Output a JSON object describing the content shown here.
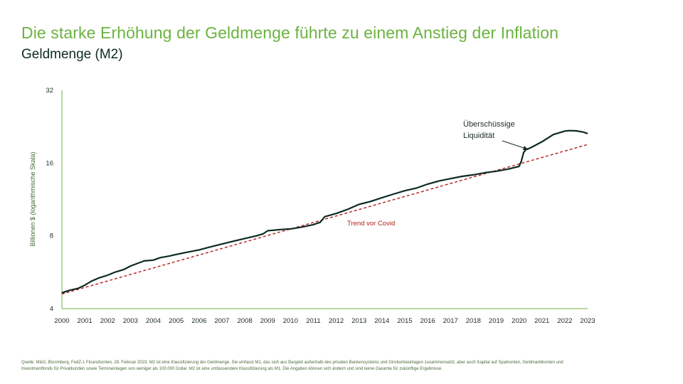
{
  "title": "Die starke Erhöhung der Geldmenge führte zu einem Anstieg der Inflation",
  "subtitle": "Geldmenge (M2)",
  "source": "Quelle: M&G, Bloomberg, FedZ-1 Finanzkonten, 28. Februar 2023. M2 ist eine Klassifizierung der Geldmenge. Sie umfasst M1, das sich aus Bargeld außerhalb des privaten Bankensystems und Girokontoeinlagen zusammensetzt, aber auch Kapital auf Sparkonten, Geldmarktkonten und Investmentfonds für Privatkunden sowie Termineinlagen von weniger als 100.000 Dollar. M2 ist eine umfassendere Klassifizierung als M1. Die Angaben können sich ändern und sind keine Garantie für zukünftige Ergebnisse.",
  "colors": {
    "title": "#6bb33f",
    "series": "#0d2a22",
    "trend": "#b31c1c",
    "axis": "#6bb33f"
  },
  "chart_data": {
    "type": "line",
    "title": "Geldmenge (M2)",
    "ylabel": "Billionen $ (logarithmische Skala)",
    "yscale": "log2",
    "ylim": [
      4,
      32
    ],
    "yticks": [
      4,
      8,
      16,
      32
    ],
    "xlim": [
      2000,
      2023
    ],
    "xticks": [
      2000,
      2001,
      2002,
      2003,
      2004,
      2005,
      2006,
      2007,
      2008,
      2009,
      2010,
      2011,
      2012,
      2013,
      2014,
      2015,
      2016,
      2017,
      2018,
      2019,
      2020,
      2021,
      2022,
      2023
    ],
    "grid": false,
    "series": [
      {
        "x": [
          2000,
          2000.3,
          2000.7,
          2001,
          2001.3,
          2001.6,
          2002,
          2002.3,
          2002.7,
          2003,
          2003.3,
          2003.6,
          2004,
          2004.3,
          2004.7,
          2005,
          2005.5,
          2006,
          2006.5,
          2007,
          2007.5,
          2008,
          2008.5,
          2008.8,
          2009,
          2009.3,
          2009.6,
          2010,
          2010.5,
          2011,
          2011.3,
          2011.5,
          2012,
          2012.5,
          2013,
          2013.5,
          2014,
          2014.5,
          2015,
          2015.5,
          2016,
          2016.5,
          2017,
          2017.5,
          2018,
          2018.5,
          2019,
          2019.5,
          2020,
          2020.1,
          2020.2,
          2020.3,
          2020.5,
          2021,
          2021.5,
          2022,
          2022.2,
          2022.5,
          2022.8,
          2023
        ],
        "values": [
          4.65,
          4.75,
          4.85,
          5.0,
          5.2,
          5.35,
          5.5,
          5.65,
          5.8,
          6.0,
          6.15,
          6.3,
          6.35,
          6.5,
          6.6,
          6.7,
          6.85,
          7.0,
          7.2,
          7.4,
          7.6,
          7.8,
          8.0,
          8.15,
          8.4,
          8.45,
          8.5,
          8.55,
          8.7,
          8.9,
          9.1,
          9.6,
          9.9,
          10.3,
          10.8,
          11.1,
          11.5,
          11.9,
          12.3,
          12.6,
          13.1,
          13.5,
          13.8,
          14.1,
          14.3,
          14.6,
          14.8,
          15.1,
          15.5,
          16.3,
          17.7,
          18.2,
          18.5,
          19.6,
          21.0,
          21.7,
          21.8,
          21.75,
          21.5,
          21.2
        ]
      },
      {
        "name": "Trend vor Covid",
        "x": [
          2000,
          2023
        ],
        "values": [
          4.6,
          19.1
        ]
      }
    ],
    "annotations": [
      {
        "text": "Überschüssige Liquidität",
        "lines": [
          "Überschüssige",
          "Liquidität"
        ]
      },
      {
        "text": "Trend vor Covid"
      }
    ]
  }
}
